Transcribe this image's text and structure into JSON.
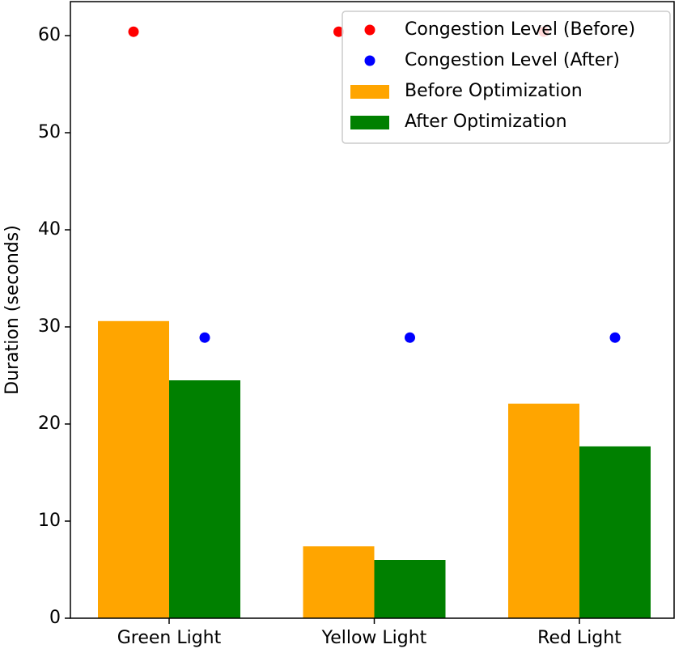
{
  "chart_data": {
    "type": "bar",
    "y_label": "Duration (seconds)",
    "categories": [
      "Green Light",
      "Yellow Light",
      "Red Light"
    ],
    "series": [
      {
        "name": "Congestion Level (Before)",
        "color": "#ff0000",
        "kind": "scatter",
        "values": [
          60.4,
          60.4,
          60.4
        ]
      },
      {
        "name": "Congestion Level (After)",
        "color": "#0000ff",
        "kind": "scatter",
        "values": [
          28.9,
          28.9,
          28.9
        ]
      },
      {
        "name": "Before Optimization",
        "color": "#ffa500",
        "kind": "bar",
        "values": [
          30.6,
          7.4,
          22.1
        ]
      },
      {
        "name": "After Optimization",
        "color": "#008000",
        "kind": "bar",
        "values": [
          24.5,
          6.0,
          17.7
        ]
      }
    ],
    "ylim": [
      0,
      63.5
    ],
    "yticks": [
      0,
      10,
      20,
      30,
      40,
      50,
      60
    ],
    "legend": "upper right"
  }
}
